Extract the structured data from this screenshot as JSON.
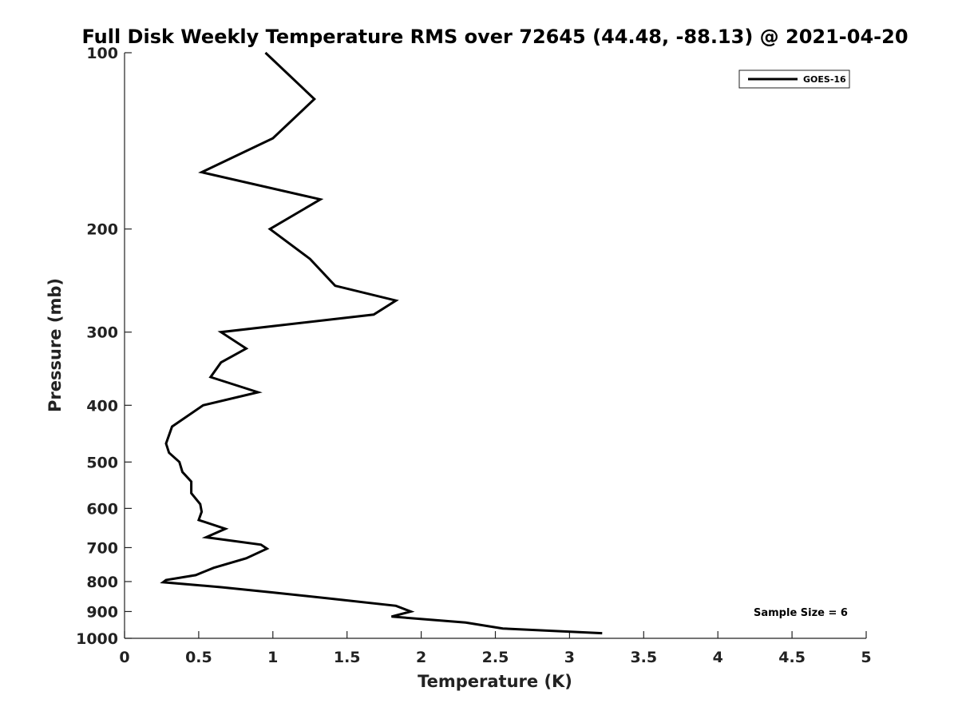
{
  "chart_data": {
    "type": "line",
    "title": "Full Disk Weekly Temperature RMS over 72645 (44.48, -88.13) @ 2021-04-20",
    "xlabel": "Temperature (K)",
    "ylabel": "Pressure (mb)",
    "xlim": [
      0,
      5
    ],
    "ylim": [
      100,
      1000
    ],
    "y_scale": "log",
    "y_reversed": true,
    "x_ticks": [
      "0",
      "0.5",
      "1",
      "1.5",
      "2",
      "2.5",
      "3",
      "3.5",
      "4",
      "4.5",
      "5"
    ],
    "y_ticks": [
      "100",
      "200",
      "300",
      "400",
      "500",
      "600",
      "700",
      "800",
      "900",
      "1000"
    ],
    "grid": false,
    "legend_position": "top-right",
    "series": [
      {
        "name": "GOES-16",
        "color": "#000000",
        "x": [
          0.95,
          1.28,
          1.0,
          0.52,
          1.32,
          0.98,
          1.25,
          1.42,
          1.83,
          1.68,
          0.65,
          0.82,
          0.65,
          0.58,
          0.9,
          0.53,
          0.32,
          0.28,
          0.3,
          0.37,
          0.39,
          0.45,
          0.45,
          0.51,
          0.52,
          0.5,
          0.68,
          0.55,
          0.92,
          0.96,
          0.82,
          0.6,
          0.48,
          0.28,
          0.26,
          0.65,
          1.0,
          1.38,
          1.83,
          1.93,
          1.8,
          2.3,
          2.55,
          3.22
        ],
        "y": [
          100,
          120,
          140,
          160,
          178,
          200,
          225,
          250,
          265,
          280,
          300,
          320,
          338,
          358,
          380,
          400,
          435,
          465,
          482,
          500,
          520,
          540,
          565,
          590,
          608,
          628,
          650,
          672,
          692,
          703,
          730,
          758,
          780,
          795,
          802,
          818,
          835,
          855,
          880,
          900,
          918,
          940,
          962,
          980
        ]
      }
    ],
    "annotations": [
      "Sample Size = 6"
    ]
  }
}
